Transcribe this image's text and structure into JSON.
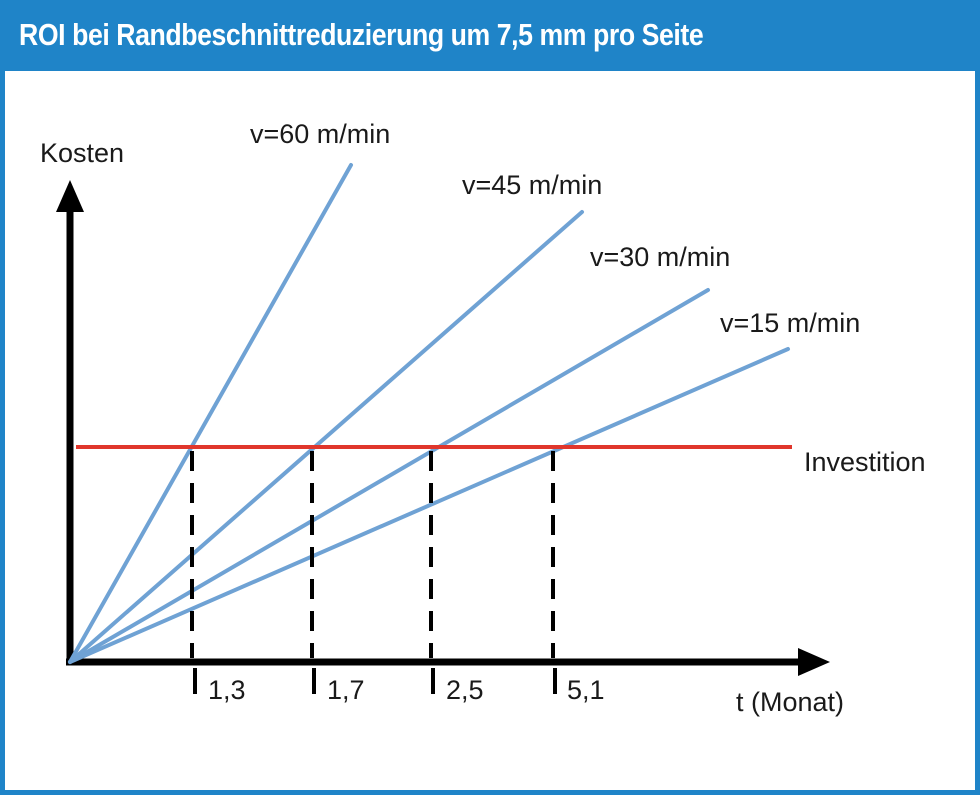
{
  "chart_data": {
    "type": "line",
    "title": "ROI bei Randbeschnittreduzierung um 7,5 mm pro Seite",
    "ylabel": "Kosten",
    "xlabel": "t (Monat)",
    "investment_label": "Investition",
    "series": [
      {
        "name": "v=60 m/min",
        "breakeven": 1.3,
        "breakeven_label": "1,3"
      },
      {
        "name": "v=45 m/min",
        "breakeven": 1.7,
        "breakeven_label": "1,7"
      },
      {
        "name": "v=30 m/min",
        "breakeven": 2.5,
        "breakeven_label": "2,5"
      },
      {
        "name": "v=15 m/min",
        "breakeven": 5.1,
        "breakeven_label": "5,1"
      }
    ],
    "colors": {
      "series_line": "#6fa2d4",
      "investment_line": "#e0362c",
      "axis": "#000000",
      "frame": "#1f84c8"
    },
    "grid": false
  }
}
